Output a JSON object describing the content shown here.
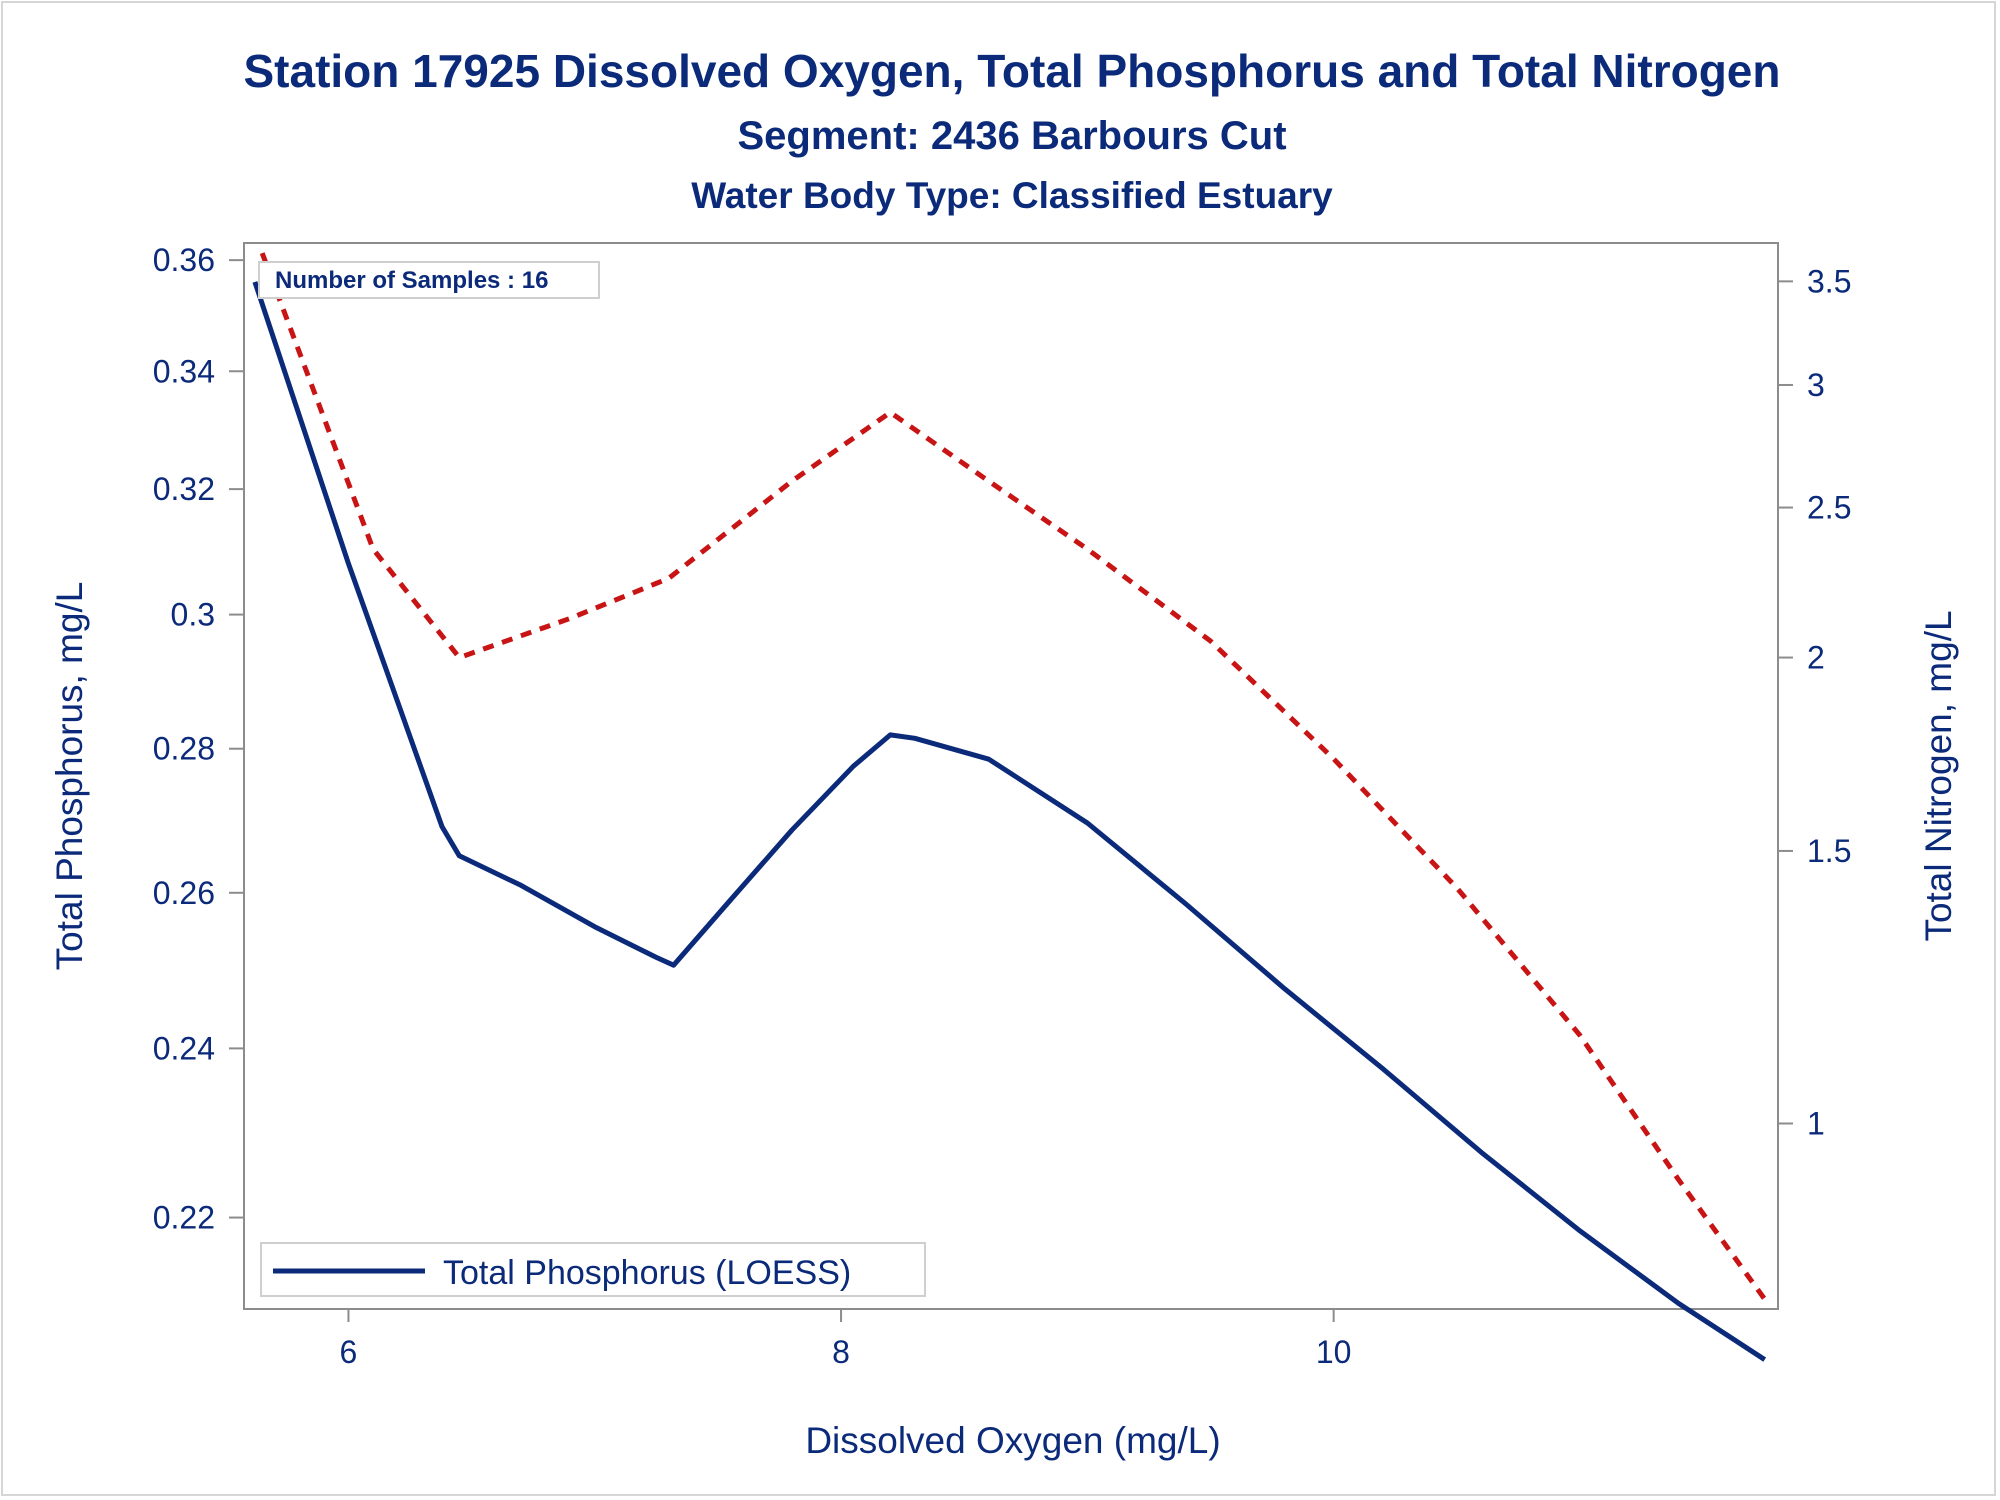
{
  "chart_data": {
    "type": "line",
    "title": "Station 17925  Dissolved Oxygen, Total Phosphorus and Total Nitrogen",
    "subtitle": "Segment: 2436  Barbours Cut",
    "subtitle2": "Water Body Type: Classified Estuary",
    "xlabel": "Dissolved Oxygen (mg/L)",
    "ylabel": "Total Phosphorus, mg/L",
    "y2label": "Total Nitrogen, mg/L",
    "xlim": [
      5.58,
      11.8
    ],
    "ylim": [
      0.21,
      0.363
    ],
    "y_scale": "log",
    "y2lim": [
      0.76,
      3.7
    ],
    "y2_scale": "log",
    "x_ticks": [
      6,
      8,
      10
    ],
    "y_ticks": [
      0.22,
      0.24,
      0.26,
      0.28,
      0.3,
      0.32,
      0.34,
      0.36
    ],
    "y2_ticks": [
      1,
      1.5,
      2,
      2.5,
      3,
      3.5
    ],
    "inset_label": "Number of Samples : 16",
    "legend": {
      "position": "bottom-left",
      "entries": [
        "Total Phosphorus (LOESS)"
      ]
    },
    "grid": false,
    "colors": {
      "text": "#0b2a7a",
      "phosphorus": "#0b2a7a",
      "nitrogen": "#c81414",
      "axis": "#8c8c8c"
    },
    "series": [
      {
        "name": "Total Phosphorus (LOESS)",
        "axis": "left",
        "style": "solid",
        "x": [
          5.62,
          6.0,
          6.38,
          6.45,
          6.7,
          7.0,
          7.25,
          7.32,
          7.55,
          7.8,
          8.05,
          8.2,
          8.3,
          8.6,
          9.0,
          9.4,
          9.8,
          10.2,
          10.6,
          11.0,
          11.4,
          11.75
        ],
        "y": [
          0.356,
          0.308,
          0.269,
          0.265,
          0.261,
          0.2555,
          0.2515,
          0.2505,
          0.259,
          0.2685,
          0.2775,
          0.282,
          0.2815,
          0.2785,
          0.2695,
          0.2585,
          0.2475,
          0.2375,
          0.2275,
          0.2185,
          0.2105,
          0.2045
        ]
      },
      {
        "name": "",
        "axis": "right",
        "style": "dashed",
        "x": [
          5.65,
          6.1,
          6.45,
          6.9,
          7.3,
          7.8,
          8.2,
          8.6,
          9.0,
          9.5,
          10.0,
          10.5,
          11.0,
          11.4,
          11.75
        ],
        "y": [
          3.65,
          2.35,
          2.0,
          2.12,
          2.25,
          2.6,
          2.88,
          2.6,
          2.35,
          2.05,
          1.72,
          1.42,
          1.14,
          0.92,
          0.77
        ]
      }
    ]
  }
}
